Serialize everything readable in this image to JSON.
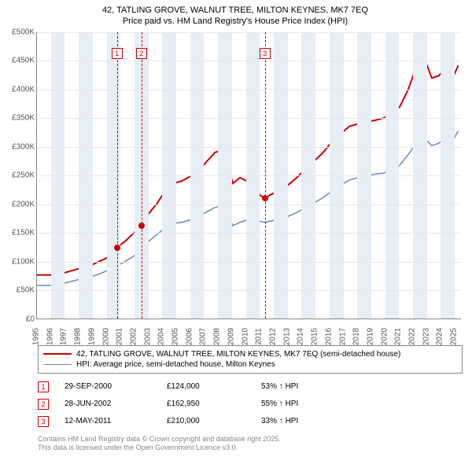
{
  "title1": "42, TATLING GROVE, WALNUT TREE, MILTON KEYNES, MK7 7EQ",
  "title2": "Price paid vs. HM Land Registry's House Price Index (HPI)",
  "chart": {
    "type": "line",
    "ylim": [
      0,
      500000
    ],
    "ytick_step": 50000,
    "xlim": [
      1995,
      2025.5
    ],
    "xticks": [
      1995,
      1996,
      1997,
      1998,
      1999,
      2000,
      2001,
      2002,
      2003,
      2004,
      2005,
      2006,
      2007,
      2008,
      2009,
      2010,
      2011,
      2012,
      2013,
      2014,
      2015,
      2016,
      2017,
      2018,
      2019,
      2020,
      2021,
      2022,
      2023,
      2024,
      2025
    ],
    "band_years": [
      1996,
      1998,
      2000,
      2002,
      2004,
      2006,
      2008,
      2010,
      2012,
      2014,
      2016,
      2018,
      2020,
      2022,
      2024
    ],
    "background": "#ffffff",
    "band_color": "#e8eef5",
    "grid_color": "#e8e8e8",
    "series": [
      {
        "name": "property",
        "color": "#cc0000",
        "stroke_width": 2,
        "data": [
          [
            1995.0,
            76000
          ],
          [
            1996.0,
            76000
          ],
          [
            1997.0,
            80000
          ],
          [
            1998.0,
            87000
          ],
          [
            1998.8,
            92000
          ],
          [
            1999.5,
            100000
          ],
          [
            2000.2,
            108000
          ],
          [
            2000.75,
            124000
          ],
          [
            2001.3,
            134000
          ],
          [
            2001.9,
            148000
          ],
          [
            2002.5,
            162950
          ],
          [
            2003.0,
            182000
          ],
          [
            2003.6,
            200000
          ],
          [
            2004.2,
            222000
          ],
          [
            2004.8,
            236000
          ],
          [
            2005.4,
            240000
          ],
          [
            2006.0,
            248000
          ],
          [
            2006.6,
            258000
          ],
          [
            2007.2,
            274000
          ],
          [
            2007.8,
            290000
          ],
          [
            2008.3,
            294000
          ],
          [
            2008.7,
            268000
          ],
          [
            2009.1,
            236000
          ],
          [
            2009.6,
            246000
          ],
          [
            2010.1,
            240000
          ],
          [
            2010.6,
            256000
          ],
          [
            2011.0,
            216000
          ],
          [
            2011.36,
            210000
          ],
          [
            2011.8,
            216000
          ],
          [
            2012.4,
            224000
          ],
          [
            2013.0,
            232000
          ],
          [
            2013.6,
            244000
          ],
          [
            2014.2,
            258000
          ],
          [
            2014.8,
            272000
          ],
          [
            2015.5,
            288000
          ],
          [
            2016.2,
            308000
          ],
          [
            2016.9,
            324000
          ],
          [
            2017.5,
            336000
          ],
          [
            2018.1,
            340000
          ],
          [
            2018.7,
            344000
          ],
          [
            2019.3,
            346000
          ],
          [
            2019.9,
            350000
          ],
          [
            2020.5,
            356000
          ],
          [
            2021.1,
            370000
          ],
          [
            2021.7,
            400000
          ],
          [
            2022.3,
            440000
          ],
          [
            2022.9,
            452000
          ],
          [
            2023.4,
            420000
          ],
          [
            2023.9,
            424000
          ],
          [
            2024.4,
            438000
          ],
          [
            2024.9,
            420000
          ],
          [
            2025.3,
            442000
          ]
        ]
      },
      {
        "name": "hpi",
        "color": "#6a8bc0",
        "stroke_width": 1.5,
        "data": [
          [
            1995.0,
            58000
          ],
          [
            1996.0,
            58000
          ],
          [
            1997.0,
            62000
          ],
          [
            1998.0,
            68000
          ],
          [
            1998.8,
            72000
          ],
          [
            1999.5,
            78000
          ],
          [
            2000.2,
            85000
          ],
          [
            2000.75,
            92000
          ],
          [
            2001.3,
            99000
          ],
          [
            2001.9,
            108000
          ],
          [
            2002.5,
            120000
          ],
          [
            2003.0,
            134000
          ],
          [
            2003.6,
            146000
          ],
          [
            2004.2,
            158000
          ],
          [
            2004.8,
            166000
          ],
          [
            2005.4,
            168000
          ],
          [
            2006.0,
            172000
          ],
          [
            2006.6,
            178000
          ],
          [
            2007.2,
            186000
          ],
          [
            2007.8,
            194000
          ],
          [
            2008.3,
            196000
          ],
          [
            2008.7,
            182000
          ],
          [
            2009.1,
            162000
          ],
          [
            2009.6,
            168000
          ],
          [
            2010.1,
            172000
          ],
          [
            2010.6,
            176000
          ],
          [
            2011.0,
            170000
          ],
          [
            2011.36,
            168000
          ],
          [
            2011.8,
            170000
          ],
          [
            2012.4,
            174000
          ],
          [
            2013.0,
            178000
          ],
          [
            2013.6,
            184000
          ],
          [
            2014.2,
            192000
          ],
          [
            2014.8,
            200000
          ],
          [
            2015.5,
            210000
          ],
          [
            2016.2,
            222000
          ],
          [
            2016.9,
            234000
          ],
          [
            2017.5,
            242000
          ],
          [
            2018.1,
            246000
          ],
          [
            2018.7,
            250000
          ],
          [
            2019.3,
            252000
          ],
          [
            2019.9,
            254000
          ],
          [
            2020.5,
            258000
          ],
          [
            2021.1,
            268000
          ],
          [
            2021.7,
            286000
          ],
          [
            2022.3,
            306000
          ],
          [
            2022.9,
            314000
          ],
          [
            2023.4,
            302000
          ],
          [
            2023.9,
            306000
          ],
          [
            2024.4,
            316000
          ],
          [
            2024.9,
            310000
          ],
          [
            2025.3,
            328000
          ]
        ]
      }
    ],
    "markers": [
      {
        "n": "1",
        "x": 2000.75,
        "label_top": 20
      },
      {
        "n": "2",
        "x": 2002.5,
        "label_top": 20
      },
      {
        "n": "3",
        "x": 2011.36,
        "label_top": 20
      }
    ],
    "sale_points": [
      {
        "x": 2000.75,
        "y": 124000,
        "color": "#cc0000"
      },
      {
        "x": 2002.5,
        "y": 162950,
        "color": "#cc0000"
      },
      {
        "x": 2011.36,
        "y": 210000,
        "color": "#cc0000"
      }
    ]
  },
  "legend": {
    "items": [
      {
        "color": "#cc0000",
        "width": 2,
        "label": "42, TATLING GROVE, WALNUT TREE, MILTON KEYNES, MK7 7EQ (semi-detached house)"
      },
      {
        "color": "#6a8bc0",
        "width": 1.5,
        "label": "HPI: Average price, semi-detached house, Milton Keynes"
      }
    ]
  },
  "events": [
    {
      "n": "1",
      "date": "29-SEP-2000",
      "price": "£124,000",
      "delta": "53% ↑ HPI"
    },
    {
      "n": "2",
      "date": "28-JUN-2002",
      "price": "£162,950",
      "delta": "55% ↑ HPI"
    },
    {
      "n": "3",
      "date": "12-MAY-2011",
      "price": "£210,000",
      "delta": "33% ↑ HPI"
    }
  ],
  "footer1": "Contains HM Land Registry data © Crown copyright and database right 2025.",
  "footer2": "This data is licensed under the Open Government Licence v3.0.",
  "ytick_format_prefix": "£",
  "ytick_format_suffix": "K"
}
